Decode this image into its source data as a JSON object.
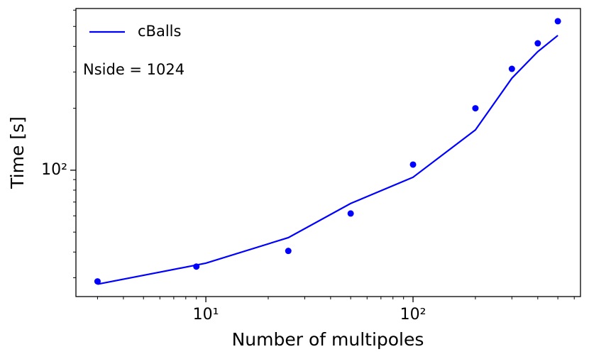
{
  "chart_data": {
    "type": "line",
    "xlabel": "Number of multipoles",
    "ylabel": "Time [s]",
    "annotation": "Nside = 1024",
    "xscale": "log",
    "yscale": "log",
    "xlim": [
      2.36,
      643
    ],
    "ylim": [
      24.3,
      611
    ],
    "xticks": [
      {
        "value": 10,
        "label": "10¹"
      },
      {
        "value": 100,
        "label": "10²"
      }
    ],
    "yticks": [
      {
        "value": 100,
        "label": "10²"
      }
    ],
    "xminorticks": [
      3,
      4,
      5,
      6,
      7,
      8,
      9,
      20,
      30,
      40,
      50,
      60,
      70,
      80,
      90,
      200,
      300,
      400,
      500,
      600
    ],
    "yminorticks": [
      30,
      40,
      50,
      60,
      70,
      80,
      90,
      200,
      300,
      400,
      500,
      600
    ],
    "legend": "upper left",
    "series": [
      {
        "name": "cBalls",
        "type": "line",
        "color": "#0000ff",
        "x": [
          3,
          10,
          25,
          50,
          100,
          200,
          300,
          400,
          500
        ],
        "values": [
          27.9,
          35.3,
          47,
          68.9,
          92.4,
          157,
          280,
          377,
          452
        ]
      },
      {
        "type": "scatter",
        "color": "#0000ff",
        "x": [
          3,
          9,
          25,
          50,
          100,
          200,
          300,
          400,
          500
        ],
        "values": [
          28.8,
          34,
          40.5,
          61.6,
          106.5,
          200,
          311,
          414,
          530
        ]
      }
    ]
  }
}
